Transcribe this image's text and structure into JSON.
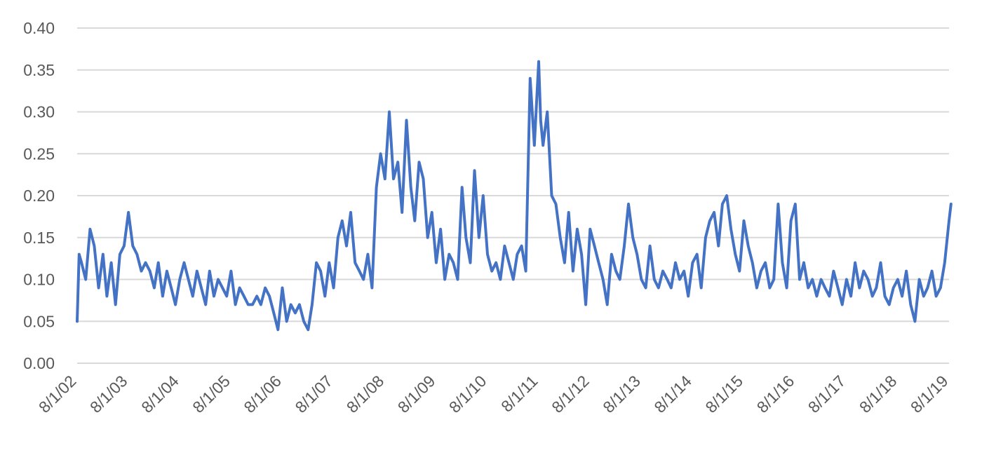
{
  "chart_data": {
    "type": "line",
    "title": "",
    "xlabel": "",
    "ylabel": "",
    "ylim": [
      0,
      0.4
    ],
    "y_ticks": [
      "0.00",
      "0.05",
      "0.10",
      "0.15",
      "0.20",
      "0.25",
      "0.30",
      "0.35",
      "0.40"
    ],
    "x_ticks": [
      "8/1/02",
      "8/1/03",
      "8/1/04",
      "8/1/05",
      "8/1/06",
      "8/1/07",
      "8/1/08",
      "8/1/09",
      "8/1/10",
      "8/1/11",
      "8/1/12",
      "8/1/13",
      "8/1/14",
      "8/1/15",
      "8/1/16",
      "8/1/17",
      "8/1/18",
      "8/1/19"
    ],
    "grid": true,
    "legend": "none",
    "series": [
      {
        "color": "#4472C4",
        "x": [
          "2002-08-01",
          "2002-08-15",
          "2002-09-01",
          "2002-10-01",
          "2002-11-01",
          "2002-12-01",
          "2003-01-01",
          "2003-02-01",
          "2003-03-01",
          "2003-04-01",
          "2003-05-01",
          "2003-06-01",
          "2003-07-01",
          "2003-08-01",
          "2003-09-01",
          "2003-10-01",
          "2003-11-01",
          "2003-12-01",
          "2004-01-01",
          "2004-02-01",
          "2004-03-01",
          "2004-04-01",
          "2004-05-01",
          "2004-06-01",
          "2004-07-01",
          "2004-08-01",
          "2004-09-01",
          "2004-10-01",
          "2004-11-01",
          "2004-12-01",
          "2005-01-01",
          "2005-02-01",
          "2005-03-01",
          "2005-04-01",
          "2005-05-01",
          "2005-06-01",
          "2005-07-01",
          "2005-08-01",
          "2005-09-01",
          "2005-10-01",
          "2005-11-01",
          "2005-12-01",
          "2006-01-01",
          "2006-02-01",
          "2006-03-01",
          "2006-04-01",
          "2006-05-01",
          "2006-06-01",
          "2006-07-01",
          "2006-08-01",
          "2006-09-01",
          "2006-10-01",
          "2006-11-01",
          "2006-12-01",
          "2007-01-01",
          "2007-02-01",
          "2007-03-01",
          "2007-04-01",
          "2007-05-01",
          "2007-06-01",
          "2007-07-01",
          "2007-08-01",
          "2007-09-01",
          "2007-10-01",
          "2007-11-01",
          "2007-12-01",
          "2008-01-01",
          "2008-02-01",
          "2008-03-01",
          "2008-04-01",
          "2008-05-01",
          "2008-06-01",
          "2008-07-01",
          "2008-08-01",
          "2008-09-01",
          "2008-10-01",
          "2008-11-01",
          "2008-12-01",
          "2009-01-01",
          "2009-02-01",
          "2009-03-01",
          "2009-04-01",
          "2009-05-01",
          "2009-06-01",
          "2009-07-01",
          "2009-08-01",
          "2009-09-01",
          "2009-10-01",
          "2009-11-01",
          "2009-12-01",
          "2010-01-01",
          "2010-02-01",
          "2010-03-01",
          "2010-04-01",
          "2010-05-01",
          "2010-06-01",
          "2010-07-01",
          "2010-08-01",
          "2010-09-01",
          "2010-10-01",
          "2010-11-01",
          "2010-12-01",
          "2011-01-01",
          "2011-02-01",
          "2011-03-01",
          "2011-04-01",
          "2011-05-01",
          "2011-06-01",
          "2011-07-01",
          "2011-08-01",
          "2011-08-15",
          "2011-09-01",
          "2011-10-01",
          "2011-11-01",
          "2011-12-01",
          "2012-01-01",
          "2012-02-01",
          "2012-03-01",
          "2012-04-01",
          "2012-05-01",
          "2012-06-01",
          "2012-07-01",
          "2012-08-01",
          "2012-09-01",
          "2012-10-01",
          "2012-11-01",
          "2012-12-01",
          "2013-01-01",
          "2013-02-01",
          "2013-03-01",
          "2013-04-01",
          "2013-05-01",
          "2013-06-01",
          "2013-07-01",
          "2013-08-01",
          "2013-09-01",
          "2013-10-01",
          "2013-11-01",
          "2013-12-01",
          "2014-01-01",
          "2014-02-01",
          "2014-03-01",
          "2014-04-01",
          "2014-05-01",
          "2014-06-01",
          "2014-07-01",
          "2014-08-01",
          "2014-09-01",
          "2014-10-01",
          "2014-11-01",
          "2014-12-01",
          "2015-01-01",
          "2015-02-01",
          "2015-03-01",
          "2015-04-01",
          "2015-05-01",
          "2015-06-01",
          "2015-07-01",
          "2015-08-01",
          "2015-09-01",
          "2015-10-01",
          "2015-11-01",
          "2015-12-01",
          "2016-01-01",
          "2016-02-01",
          "2016-03-01",
          "2016-04-01",
          "2016-05-01",
          "2016-06-01",
          "2016-07-01",
          "2016-08-01",
          "2016-09-01",
          "2016-10-01",
          "2016-11-01",
          "2016-12-01",
          "2017-01-01",
          "2017-02-01",
          "2017-03-01",
          "2017-04-01",
          "2017-05-01",
          "2017-06-01",
          "2017-07-01",
          "2017-08-01",
          "2017-09-01",
          "2017-10-01",
          "2017-11-01",
          "2017-12-01",
          "2018-01-01",
          "2018-02-01",
          "2018-03-01",
          "2018-04-01",
          "2018-05-01",
          "2018-06-01",
          "2018-07-01",
          "2018-08-01",
          "2018-09-01",
          "2018-10-01",
          "2018-11-01",
          "2018-12-01",
          "2019-01-01",
          "2019-02-01",
          "2019-03-01",
          "2019-04-01",
          "2019-05-01",
          "2019-06-01",
          "2019-07-01",
          "2019-08-01",
          "2019-08-15"
        ],
        "values": [
          0.05,
          0.13,
          0.12,
          0.1,
          0.16,
          0.14,
          0.09,
          0.13,
          0.08,
          0.12,
          0.07,
          0.13,
          0.14,
          0.18,
          0.14,
          0.13,
          0.11,
          0.12,
          0.11,
          0.09,
          0.12,
          0.08,
          0.11,
          0.09,
          0.07,
          0.1,
          0.12,
          0.1,
          0.08,
          0.11,
          0.09,
          0.07,
          0.11,
          0.08,
          0.1,
          0.09,
          0.08,
          0.11,
          0.07,
          0.09,
          0.08,
          0.07,
          0.07,
          0.08,
          0.07,
          0.09,
          0.08,
          0.06,
          0.04,
          0.09,
          0.05,
          0.07,
          0.06,
          0.07,
          0.05,
          0.04,
          0.07,
          0.12,
          0.11,
          0.08,
          0.12,
          0.09,
          0.15,
          0.17,
          0.14,
          0.18,
          0.12,
          0.11,
          0.1,
          0.13,
          0.09,
          0.21,
          0.25,
          0.22,
          0.3,
          0.22,
          0.24,
          0.18,
          0.29,
          0.21,
          0.17,
          0.24,
          0.22,
          0.15,
          0.18,
          0.12,
          0.16,
          0.1,
          0.13,
          0.12,
          0.1,
          0.21,
          0.15,
          0.12,
          0.23,
          0.15,
          0.2,
          0.13,
          0.11,
          0.12,
          0.1,
          0.14,
          0.12,
          0.1,
          0.13,
          0.14,
          0.11,
          0.34,
          0.26,
          0.36,
          0.29,
          0.26,
          0.3,
          0.2,
          0.19,
          0.15,
          0.12,
          0.18,
          0.11,
          0.16,
          0.13,
          0.07,
          0.16,
          0.14,
          0.12,
          0.1,
          0.07,
          0.13,
          0.11,
          0.1,
          0.14,
          0.19,
          0.15,
          0.13,
          0.1,
          0.09,
          0.14,
          0.1,
          0.09,
          0.11,
          0.1,
          0.09,
          0.12,
          0.1,
          0.11,
          0.08,
          0.12,
          0.13,
          0.09,
          0.15,
          0.17,
          0.18,
          0.14,
          0.19,
          0.2,
          0.16,
          0.13,
          0.11,
          0.17,
          0.14,
          0.12,
          0.09,
          0.11,
          0.12,
          0.09,
          0.1,
          0.19,
          0.12,
          0.09,
          0.17,
          0.19,
          0.1,
          0.12,
          0.09,
          0.1,
          0.08,
          0.1,
          0.09,
          0.08,
          0.11,
          0.09,
          0.07,
          0.1,
          0.08,
          0.12,
          0.09,
          0.11,
          0.1,
          0.08,
          0.09,
          0.12,
          0.08,
          0.07,
          0.09,
          0.1,
          0.08,
          0.11,
          0.07,
          0.05,
          0.1,
          0.08,
          0.09,
          0.11,
          0.08,
          0.09,
          0.12,
          0.17,
          0.19
        ]
      }
    ]
  }
}
